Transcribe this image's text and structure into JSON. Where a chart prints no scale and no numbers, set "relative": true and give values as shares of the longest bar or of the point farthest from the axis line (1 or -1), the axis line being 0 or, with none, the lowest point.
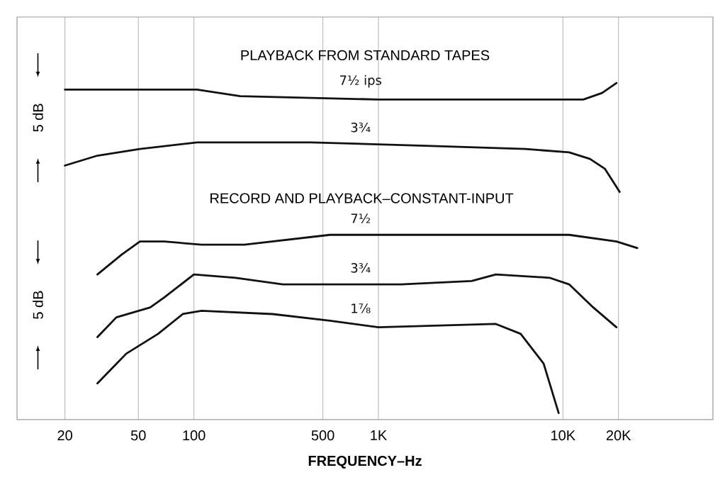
{
  "chart_data": {
    "type": "line",
    "xlabel": "FREQUENCY–Hz",
    "log": "x",
    "relative": true,
    "grid": "x",
    "line_style": "solid",
    "xlim": [
      11,
      65000
    ],
    "xticks": [
      20,
      50,
      100,
      500,
      {
        "value": 1000,
        "label": "1K"
      },
      {
        "value": 10000,
        "label": "10K"
      },
      {
        "value": 20000,
        "label": "20K"
      }
    ],
    "annotations": [
      "PLAYBACK FROM STANDARD TAPES",
      "RECORD AND PLAYBACK–CONSTANT-INPUT",
      "5 dB",
      "5 dB"
    ],
    "series": [
      {
        "name": "7½ ips",
        "color": "#111111",
        "x": [
          20,
          51,
          92,
          104,
          178,
          1000,
          4330,
          12900,
          16300,
          19500
        ],
        "values": [
          0.98,
          0.98,
          0.98,
          0.98,
          0.96,
          0.95,
          0.95,
          0.95,
          0.97,
          1.0
        ]
      },
      {
        "name": "3¾",
        "color": "#111111",
        "x": [
          20,
          30,
          51,
          104,
          212,
          432,
          1800,
          6250,
          10800,
          14000,
          16900,
          20300
        ],
        "values": [
          0.75,
          0.78,
          0.8,
          0.82,
          0.82,
          0.82,
          0.81,
          0.8,
          0.79,
          0.77,
          0.74,
          0.67
        ]
      },
      {
        "name": "7½",
        "color": "#111111",
        "x": [
          30,
          40.6,
          51,
          69,
          110,
          188,
          546,
          1800,
          10800,
          19500,
          25300
        ],
        "values": [
          0.42,
          0.48,
          0.52,
          0.52,
          0.51,
          0.51,
          0.54,
          0.54,
          0.54,
          0.52,
          0.5
        ]
      },
      {
        "name": "3¾",
        "color": "#111111",
        "x": [
          30,
          38,
          58,
          69,
          100,
          168,
          303,
          1330,
          3200,
          4330,
          8450,
          10800,
          14600,
          19500
        ],
        "values": [
          0.23,
          0.29,
          0.32,
          0.35,
          0.42,
          0.41,
          0.39,
          0.39,
          0.4,
          0.42,
          0.41,
          0.39,
          0.32,
          0.26
        ]
      },
      {
        "name": "1⅞",
        "color": "#111111",
        "x": [
          30,
          43,
          64,
          87,
          110,
          267,
          546,
          1000,
          4330,
          5900,
          7860,
          9480
        ],
        "values": [
          0.09,
          0.18,
          0.24,
          0.3,
          0.31,
          0.3,
          0.28,
          0.26,
          0.27,
          0.24,
          0.15,
          0.0
        ]
      }
    ]
  }
}
